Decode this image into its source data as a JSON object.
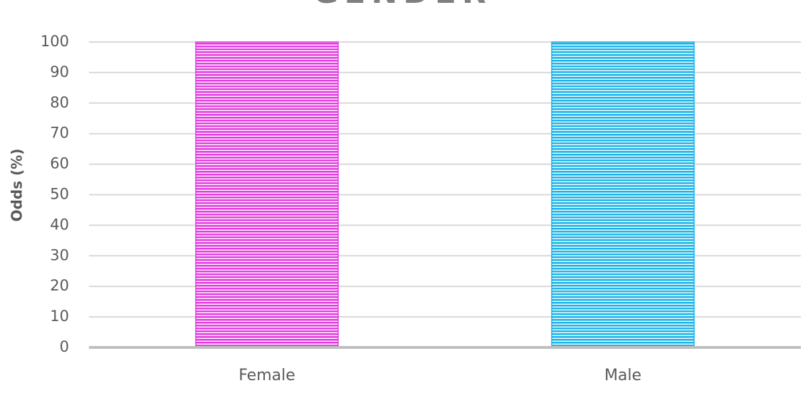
{
  "chart_data": {
    "type": "bar",
    "title": "GENDER",
    "y_label": "Odds (%)",
    "categories": [
      "Female",
      "Male"
    ],
    "values": [
      100,
      100
    ],
    "colors": [
      "#e23ee0",
      "#1fb4e8"
    ],
    "ylim": [
      0,
      100
    ],
    "yticks": [
      0,
      10,
      20,
      30,
      40,
      50,
      60,
      70,
      80,
      90,
      100
    ],
    "grid": true
  }
}
